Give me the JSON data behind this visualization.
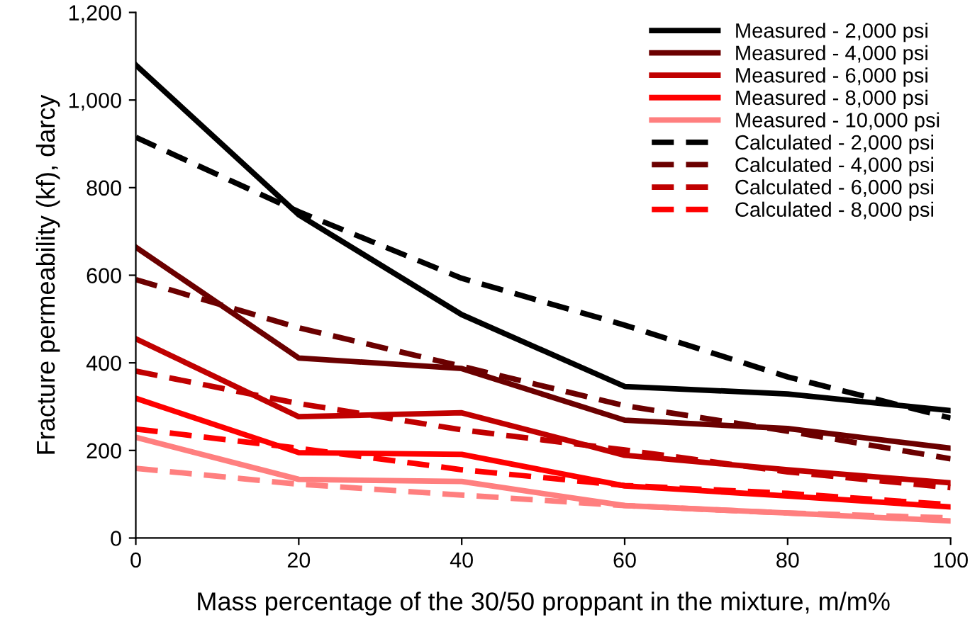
{
  "chart_data": {
    "type": "line",
    "xlabel": "Mass percentage of the 30/50 proppant in the mixture, m/m%",
    "ylabel": "Fracture permeability (kf), darcy",
    "x": [
      0,
      20,
      40,
      60,
      80,
      100
    ],
    "xlim": [
      0,
      100
    ],
    "xticks": [
      0,
      20,
      40,
      60,
      80,
      100
    ],
    "ylim": [
      0,
      1200
    ],
    "yticks": [
      0,
      200,
      400,
      600,
      800,
      {
        "value": 1000,
        "label": "1,000"
      },
      {
        "value": 1200,
        "label": "1,200"
      }
    ],
    "legend": "top right",
    "grid": false,
    "series": [
      {
        "name": "Measured - 2,000 psi",
        "color": "#000000",
        "line_style": "solid",
        "values": [
          1080,
          738,
          510,
          346,
          329,
          291
        ]
      },
      {
        "name": "Measured - 4,000 psi",
        "color": "#6b0000",
        "line_style": "solid",
        "values": [
          664,
          411,
          387,
          269,
          250,
          205
        ]
      },
      {
        "name": "Measured - 6,000 psi",
        "color": "#c00000",
        "line_style": "solid",
        "values": [
          455,
          277,
          286,
          189,
          156,
          126
        ]
      },
      {
        "name": "Measured - 8,000 psi",
        "color": "#ff0000",
        "line_style": "solid",
        "values": [
          319,
          195,
          191,
          119,
          96,
          71
        ]
      },
      {
        "name": "Measured - 10,000 psi",
        "color": "#ff7f7f",
        "line_style": "solid",
        "values": [
          230,
          134,
          129,
          74,
          57,
          39
        ]
      },
      {
        "name": "Calculated - 2,000 psi",
        "color": "#000000",
        "line_style": "dashed",
        "values": [
          915,
          745,
          593,
          486,
          368,
          274
        ]
      },
      {
        "name": "Calculated - 4,000 psi",
        "color": "#6b0000",
        "line_style": "dashed",
        "values": [
          590,
          480,
          392,
          302,
          244,
          181
        ]
      },
      {
        "name": "Calculated - 6,000 psi",
        "color": "#c00000",
        "line_style": "dashed",
        "values": [
          381,
          307,
          247,
          201,
          151,
          115
        ]
      },
      {
        "name": "Calculated - 8,000 psi",
        "color": "#ff0000",
        "line_style": "dashed",
        "values": [
          249,
          205,
          156,
          120,
          102,
          76
        ]
      },
      {
        "color": "#ff7f7f",
        "line_style": "dashed",
        "values": [
          159,
          123,
          98,
          74,
          57,
          46
        ]
      }
    ]
  }
}
